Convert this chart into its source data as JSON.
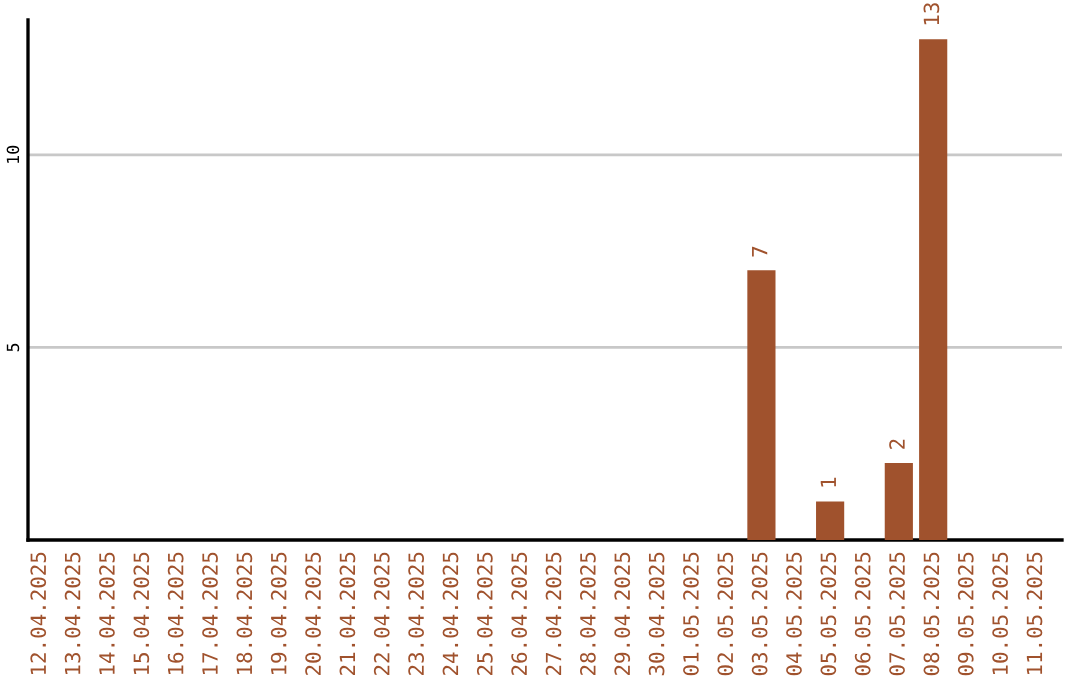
{
  "chart_data": {
    "type": "bar",
    "categories": [
      "12.04.2025",
      "13.04.2025",
      "14.04.2025",
      "15.04.2025",
      "16.04.2025",
      "17.04.2025",
      "18.04.2025",
      "19.04.2025",
      "20.04.2025",
      "21.04.2025",
      "22.04.2025",
      "23.04.2025",
      "24.04.2025",
      "25.04.2025",
      "26.04.2025",
      "27.04.2025",
      "28.04.2025",
      "29.04.2025",
      "30.04.2025",
      "01.05.2025",
      "02.05.2025",
      "03.05.2025",
      "04.05.2025",
      "05.05.2025",
      "06.05.2025",
      "07.05.2025",
      "08.05.2025",
      "09.05.2025",
      "10.05.2025",
      "11.05.2025"
    ],
    "values": [
      0,
      0,
      0,
      0,
      0,
      0,
      0,
      0,
      0,
      0,
      0,
      0,
      0,
      0,
      0,
      0,
      0,
      0,
      0,
      0,
      0,
      7,
      0,
      1,
      0,
      2,
      13,
      0,
      0,
      0
    ],
    "value_labels": [
      null,
      null,
      null,
      null,
      null,
      null,
      null,
      null,
      null,
      null,
      null,
      null,
      null,
      null,
      null,
      null,
      null,
      null,
      null,
      null,
      null,
      "7",
      null,
      "1",
      null,
      "2",
      "13",
      null,
      null,
      null
    ],
    "color": "#a0522d",
    "ylim": [
      0,
      13.5
    ],
    "yticks": [
      5,
      10
    ],
    "grid": "y"
  }
}
